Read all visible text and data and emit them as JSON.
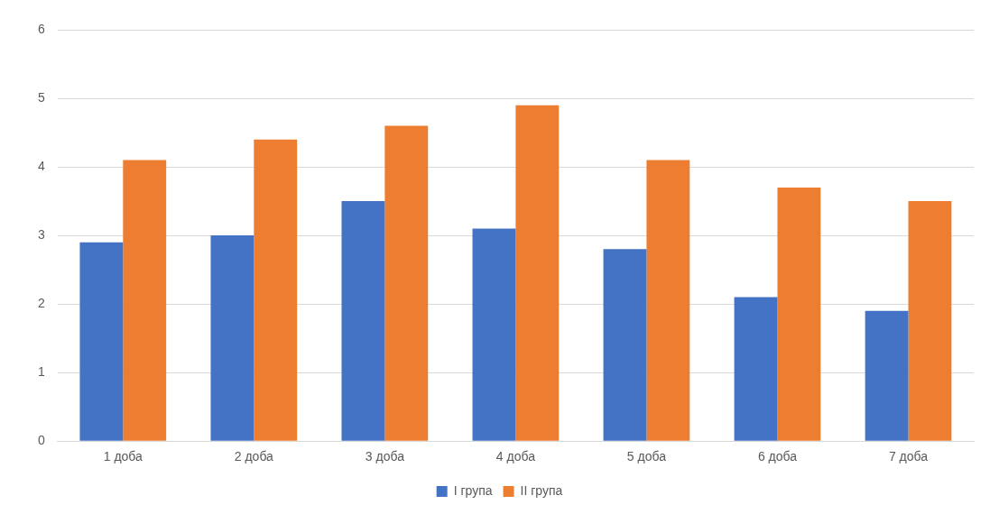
{
  "chart_data": {
    "type": "bar",
    "categories": [
      "1 доба",
      "2 доба",
      "3 доба",
      "4 доба",
      "5 доба",
      "6 доба",
      "7 доба"
    ],
    "series": [
      {
        "name": "I група",
        "color": "#4472c4",
        "values": [
          2.9,
          3.0,
          3.5,
          3.1,
          2.8,
          2.1,
          1.9
        ]
      },
      {
        "name": "II група",
        "color": "#ed7d31",
        "values": [
          4.1,
          4.4,
          4.6,
          4.9,
          4.1,
          3.7,
          3.5
        ]
      }
    ],
    "ylim": [
      0,
      6
    ],
    "yticks": [
      0,
      1,
      2,
      3,
      4,
      5,
      6
    ],
    "grid": "y",
    "legend": "bottom"
  }
}
